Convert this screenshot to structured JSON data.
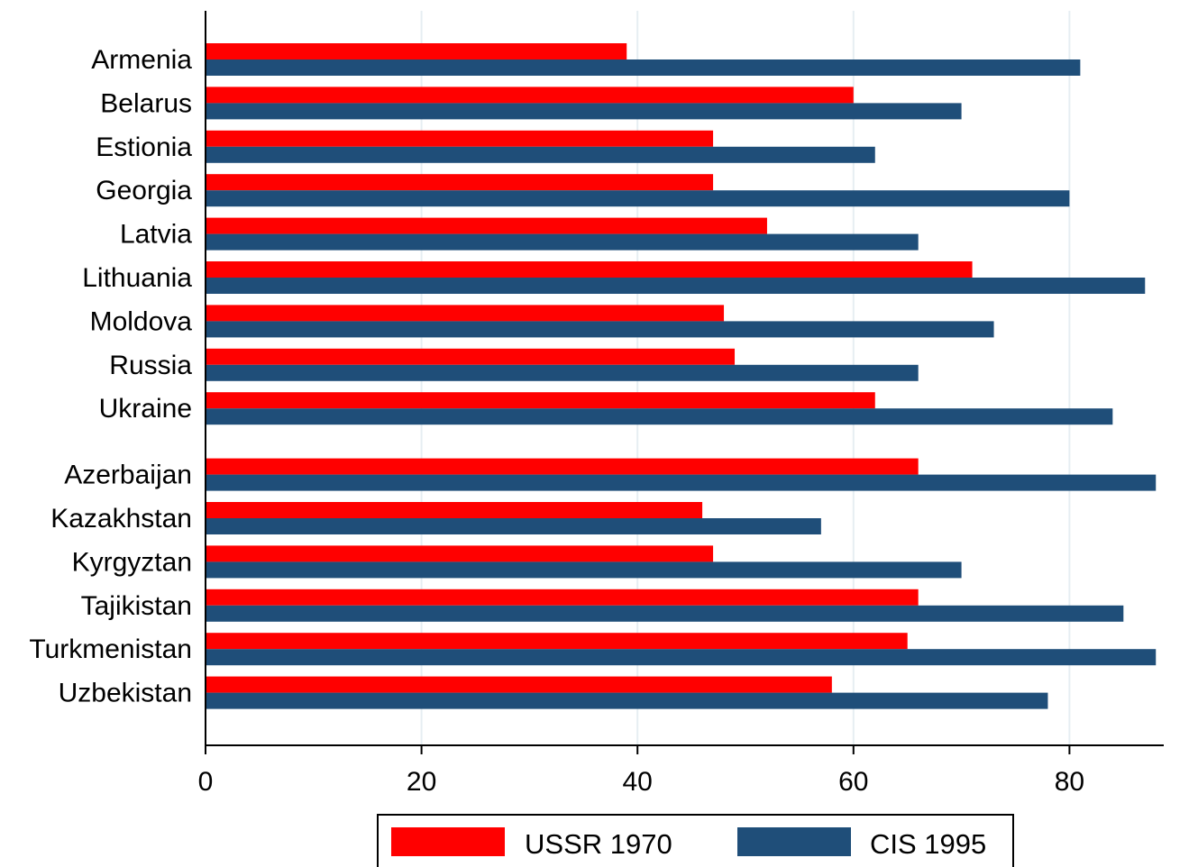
{
  "chart_data": {
    "type": "bar",
    "orientation": "horizontal",
    "categories": [
      "Armenia",
      "Belarus",
      "Estionia",
      "Georgia",
      "Latvia",
      "Lithuania",
      "Moldova",
      "Russia",
      "Ukraine",
      "Azerbaijan",
      "Kazakhstan",
      "Kyrgyztan",
      "Tajikistan",
      "Turkmenistan",
      "Uzbekistan"
    ],
    "groups": [
      [
        "Armenia",
        "Belarus",
        "Estionia",
        "Georgia",
        "Latvia",
        "Lithuania",
        "Moldova",
        "Russia",
        "Ukraine"
      ],
      [
        "Azerbaijan",
        "Kazakhstan",
        "Kyrgyztan",
        "Tajikistan",
        "Turkmenistan",
        "Uzbekistan"
      ]
    ],
    "series": [
      {
        "name": "USSR 1970",
        "color": "#ff0000",
        "values": [
          39,
          60,
          47,
          47,
          52,
          71,
          48,
          49,
          62,
          66,
          46,
          47,
          66,
          65,
          58
        ]
      },
      {
        "name": "CIS 1995",
        "color": "#1f4e79",
        "values": [
          81,
          70,
          62,
          80,
          66,
          87,
          73,
          66,
          84,
          88,
          57,
          70,
          85,
          88,
          78
        ]
      }
    ],
    "xlim": [
      0,
      90
    ],
    "xticks": [
      "0",
      "20",
      "40",
      "60",
      "80"
    ],
    "xtick_values": [
      0,
      20,
      40,
      60,
      80
    ],
    "grid": "vertical",
    "legend_position": "bottom",
    "title": "",
    "xlabel": "",
    "ylabel": ""
  }
}
